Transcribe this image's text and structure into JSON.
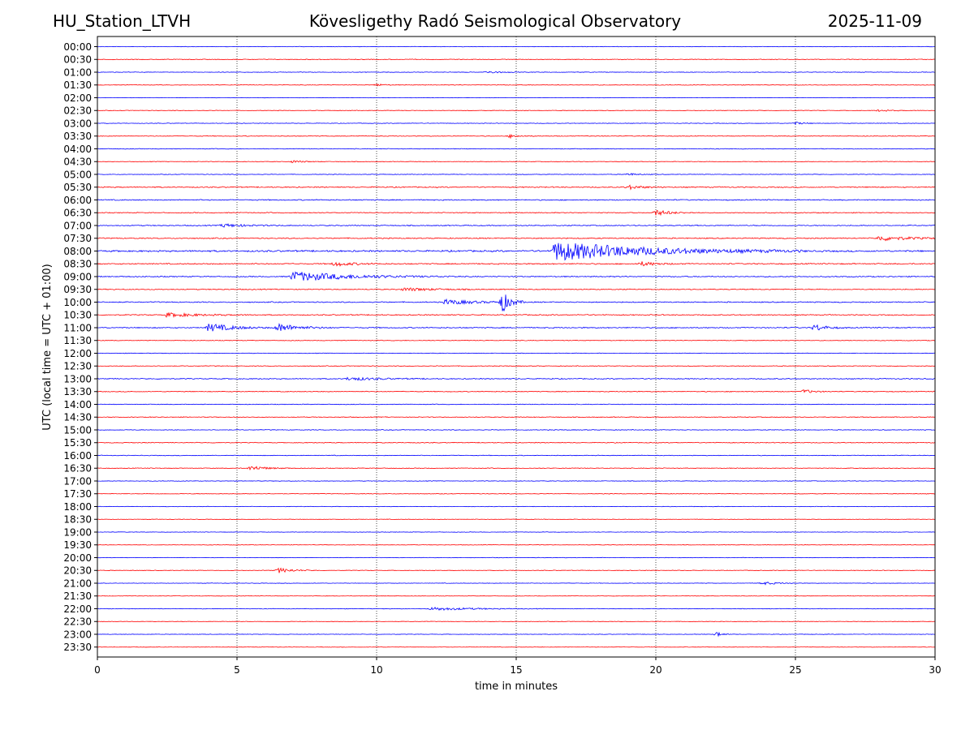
{
  "header": {
    "station": "HU_Station_LTVH",
    "observatory": "Kövesligethy Radó Seismological Observatory",
    "date": "2025-11-09"
  },
  "chart_data": {
    "type": "line",
    "xlabel": "time in minutes",
    "ylabel": "UTC (local time = UTC + 01:00)",
    "xlim": [
      0,
      30
    ],
    "x_ticks": [
      0,
      5,
      10,
      15,
      20,
      25,
      30
    ],
    "grid": "vertical dotted lines at x = 5, 10, 15, 20, 25",
    "colors": {
      "even_rows": "#0000ff",
      "odd_rows": "#ff0000",
      "grid": "#000000"
    },
    "rows": [
      "00:00",
      "00:30",
      "01:00",
      "01:30",
      "02:00",
      "02:30",
      "03:00",
      "03:30",
      "04:00",
      "04:30",
      "05:00",
      "05:30",
      "06:00",
      "06:30",
      "07:00",
      "07:30",
      "08:00",
      "08:30",
      "09:00",
      "09:30",
      "10:00",
      "10:30",
      "11:00",
      "11:30",
      "12:00",
      "12:30",
      "13:00",
      "13:30",
      "14:00",
      "14:30",
      "15:00",
      "15:30",
      "16:00",
      "16:30",
      "17:00",
      "17:30",
      "18:00",
      "18:30",
      "19:00",
      "19:30",
      "20:00",
      "20:30",
      "21:00",
      "21:30",
      "22:00",
      "22:30",
      "23:00",
      "23:30"
    ],
    "row_noise_level": [
      0.25,
      0.35,
      0.3,
      0.3,
      0.2,
      0.3,
      0.3,
      0.35,
      0.35,
      0.3,
      0.3,
      0.55,
      0.55,
      0.45,
      0.5,
      0.55,
      0.85,
      0.6,
      0.55,
      0.5,
      0.55,
      0.55,
      0.55,
      0.35,
      0.3,
      0.35,
      0.5,
      0.4,
      0.35,
      0.4,
      0.35,
      0.4,
      0.35,
      0.35,
      0.3,
      0.3,
      0.25,
      0.25,
      0.25,
      0.25,
      0.25,
      0.3,
      0.25,
      0.2,
      0.3,
      0.25,
      0.25,
      0.2
    ],
    "events": [
      {
        "row": "01:00",
        "minute": 14.0,
        "amp": 1.5,
        "dur": 1.2
      },
      {
        "row": "01:30",
        "minute": 10.0,
        "amp": 1.5,
        "dur": 0.8
      },
      {
        "row": "02:30",
        "minute": 28.0,
        "amp": 1.2,
        "dur": 1.2
      },
      {
        "row": "03:00",
        "minute": 25.0,
        "amp": 1.5,
        "dur": 1.0
      },
      {
        "row": "03:30",
        "minute": 14.8,
        "amp": 2.0,
        "dur": 1.0
      },
      {
        "row": "04:30",
        "minute": 7.0,
        "amp": 1.5,
        "dur": 1.2
      },
      {
        "row": "05:00",
        "minute": 19.0,
        "amp": 1.5,
        "dur": 1.0
      },
      {
        "row": "05:30",
        "minute": 19.0,
        "amp": 2.5,
        "dur": 1.5
      },
      {
        "row": "06:30",
        "minute": 20.0,
        "amp": 3.5,
        "dur": 1.5
      },
      {
        "row": "07:00",
        "minute": 4.5,
        "amp": 2.0,
        "dur": 2.5
      },
      {
        "row": "07:30",
        "minute": 28.0,
        "amp": 3.0,
        "dur": 3.0
      },
      {
        "row": "08:00",
        "minute": 16.4,
        "amp": 12.0,
        "dur": 9.0
      },
      {
        "row": "08:30",
        "minute": 8.5,
        "amp": 2.5,
        "dur": 2.0
      },
      {
        "row": "08:30",
        "minute": 19.5,
        "amp": 2.5,
        "dur": 1.5
      },
      {
        "row": "09:00",
        "minute": 7.0,
        "amp": 6.0,
        "dur": 6.0
      },
      {
        "row": "09:30",
        "minute": 11.0,
        "amp": 2.0,
        "dur": 3.0
      },
      {
        "row": "10:00",
        "minute": 12.5,
        "amp": 3.0,
        "dur": 3.0
      },
      {
        "row": "10:00",
        "minute": 14.5,
        "amp": 13.0,
        "dur": 0.8
      },
      {
        "row": "10:30",
        "minute": 2.5,
        "amp": 2.5,
        "dur": 3.0
      },
      {
        "row": "11:00",
        "minute": 4.0,
        "amp": 5.0,
        "dur": 2.5
      },
      {
        "row": "11:00",
        "minute": 6.5,
        "amp": 5.0,
        "dur": 2.0
      },
      {
        "row": "11:00",
        "minute": 25.7,
        "amp": 4.0,
        "dur": 1.2
      },
      {
        "row": "13:00",
        "minute": 9.0,
        "amp": 2.0,
        "dur": 3.0
      },
      {
        "row": "13:30",
        "minute": 25.3,
        "amp": 2.5,
        "dur": 1.0
      },
      {
        "row": "16:30",
        "minute": 5.5,
        "amp": 3.0,
        "dur": 1.5
      },
      {
        "row": "20:30",
        "minute": 6.5,
        "amp": 3.0,
        "dur": 1.5
      },
      {
        "row": "21:00",
        "minute": 23.8,
        "amp": 2.0,
        "dur": 1.5
      },
      {
        "row": "22:00",
        "minute": 12.0,
        "amp": 2.0,
        "dur": 4.0
      },
      {
        "row": "23:00",
        "minute": 22.2,
        "amp": 3.5,
        "dur": 0.5
      }
    ]
  }
}
